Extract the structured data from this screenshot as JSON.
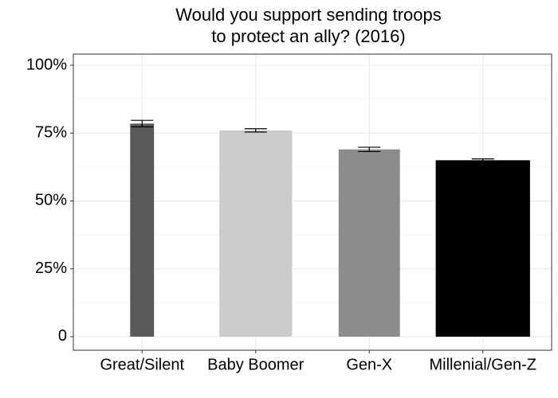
{
  "chart_data": {
    "type": "bar",
    "title": [
      "Would you support sending troops",
      "to protect an ally? (2016)"
    ],
    "categories": [
      "Great/Silent",
      "Baby Boomer",
      "Gen-X",
      "Millenial/Gen-Z"
    ],
    "values": [
      78.5,
      76,
      69,
      65
    ],
    "errors": [
      1.2,
      0.6,
      0.8,
      0.5
    ],
    "widths": [
      0.21,
      0.64,
      0.54,
      0.83
    ],
    "colors": [
      "#595959",
      "#cccccc",
      "#8c8c8c",
      "#000000"
    ],
    "ylim": [
      -5,
      104.1
    ],
    "yticks": [
      0,
      {
        "value": 25,
        "label": "25%"
      },
      {
        "value": 50,
        "label": "50%"
      },
      {
        "value": 75,
        "label": "75%"
      },
      {
        "value": 100,
        "label": "100%"
      }
    ],
    "grid": true
  }
}
